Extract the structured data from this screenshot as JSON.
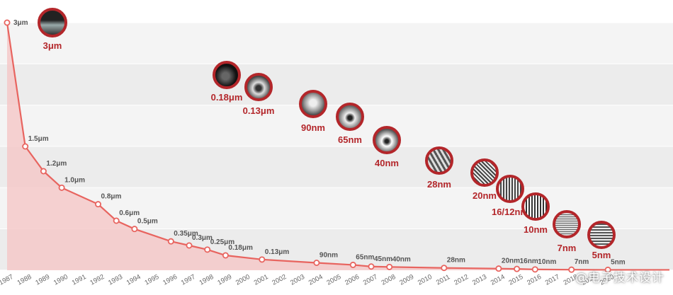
{
  "chart_data": {
    "type": "line",
    "title": "",
    "xlabel": "",
    "ylabel": "",
    "categories": [
      "1987",
      "1988",
      "1989",
      "1990",
      "1991",
      "1992",
      "1993",
      "1994",
      "1995",
      "1996",
      "1997",
      "1998",
      "1999",
      "2000",
      "2001",
      "2002",
      "2003",
      "2004",
      "2005",
      "2006",
      "2007",
      "2008",
      "2009",
      "2010",
      "2011",
      "2012",
      "2013",
      "2014",
      "2015",
      "2016",
      "2017",
      "2018",
      "2019",
      "2020"
    ],
    "series": [
      {
        "name": "",
        "points": [
          {
            "year": "1987",
            "value": 3.0,
            "label": "3μm"
          },
          {
            "year": "1988",
            "value": 1.5,
            "label": "1.5μm"
          },
          {
            "year": "1989",
            "value": 1.2,
            "label": "1.2μm"
          },
          {
            "year": "1990",
            "value": 1.0,
            "label": "1.0μm"
          },
          {
            "year": "1992",
            "value": 0.8,
            "label": "0.8μm"
          },
          {
            "year": "1993",
            "value": 0.6,
            "label": "0.6μm"
          },
          {
            "year": "1994",
            "value": 0.5,
            "label": "0.5μm"
          },
          {
            "year": "1996",
            "value": 0.35,
            "label": "0.35μm"
          },
          {
            "year": "1997",
            "value": 0.3,
            "label": "0.3μm"
          },
          {
            "year": "1998",
            "value": 0.25,
            "label": "0.25μm"
          },
          {
            "year": "1999",
            "value": 0.18,
            "label": "0.18μm"
          },
          {
            "year": "2001",
            "value": 0.13,
            "label": "0.13μm"
          },
          {
            "year": "2004",
            "value": 0.09,
            "label": "90nm"
          },
          {
            "year": "2006",
            "value": 0.065,
            "label": "65nm"
          },
          {
            "year": "2007",
            "value": 0.045,
            "label": "45nm"
          },
          {
            "year": "2008",
            "value": 0.04,
            "label": "40nm"
          },
          {
            "year": "2011",
            "value": 0.028,
            "label": "28nm"
          },
          {
            "year": "2014",
            "value": 0.02,
            "label": "20nm"
          },
          {
            "year": "2015",
            "value": 0.016,
            "label": "16nm"
          },
          {
            "year": "2016",
            "value": 0.01,
            "label": "10nm"
          },
          {
            "year": "2018",
            "value": 0.007,
            "label": "7nm"
          },
          {
            "year": "2020",
            "value": 0.005,
            "label": "5nm"
          }
        ]
      }
    ],
    "ylim": [
      0,
      3
    ],
    "grid": true,
    "legend": "none",
    "colors": {
      "line": "#e8645f",
      "fill": "#f5c9c9",
      "badge_border": "#b3262a",
      "badge_label": "#b3262a",
      "point_label": "#555555",
      "axis_label": "#666666",
      "band_light": "#f4f4f4",
      "band_dark": "#ececec"
    }
  },
  "badges": [
    {
      "label": "3μm",
      "icon": "chip-structure-3um-icon"
    },
    {
      "label": "0.18μm",
      "icon": "chip-structure-0.18um-icon"
    },
    {
      "label": "0.13μm",
      "icon": "chip-structure-0.13um-icon"
    },
    {
      "label": "90nm",
      "icon": "chip-structure-90nm-icon"
    },
    {
      "label": "65nm",
      "icon": "chip-structure-65nm-icon"
    },
    {
      "label": "40nm",
      "icon": "chip-structure-40nm-icon"
    },
    {
      "label": "28nm",
      "icon": "chip-structure-28nm-icon"
    },
    {
      "label": "20nm",
      "icon": "chip-structure-20nm-icon"
    },
    {
      "label": "16/12nm",
      "icon": "chip-structure-16-12nm-icon"
    },
    {
      "label": "10nm",
      "icon": "chip-structure-10nm-icon"
    },
    {
      "label": "7nm",
      "icon": "chip-structure-7nm-icon"
    },
    {
      "label": "5nm",
      "icon": "chip-structure-5nm-icon"
    }
  ],
  "watermark": "@电子技术设计"
}
